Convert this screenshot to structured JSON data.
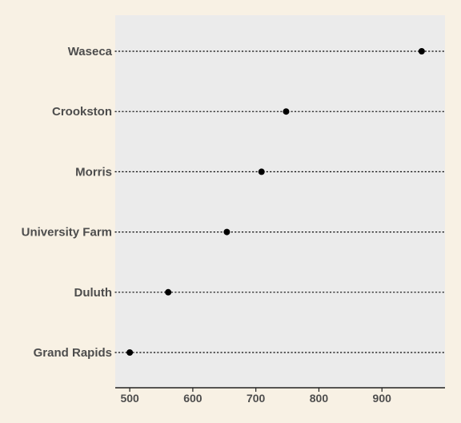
{
  "chart_data": {
    "type": "dot",
    "categories": [
      "Waseca",
      "Crookston",
      "Morris",
      "University Farm",
      "Duluth",
      "Grand Rapids"
    ],
    "values": [
      963,
      748,
      709,
      654,
      561,
      500
    ],
    "x_ticks": [
      500,
      600,
      700,
      800,
      900
    ],
    "xlim": [
      477,
      1000
    ],
    "xlabel": "",
    "ylabel": "",
    "title": "",
    "grid": "dotted horizontal guide per category",
    "legend": "none",
    "colors": {
      "background": "#f8f1e4",
      "panel": "#ebebeb",
      "point": "#000000",
      "guide": "#000000",
      "text": "#4d4d4d"
    }
  }
}
